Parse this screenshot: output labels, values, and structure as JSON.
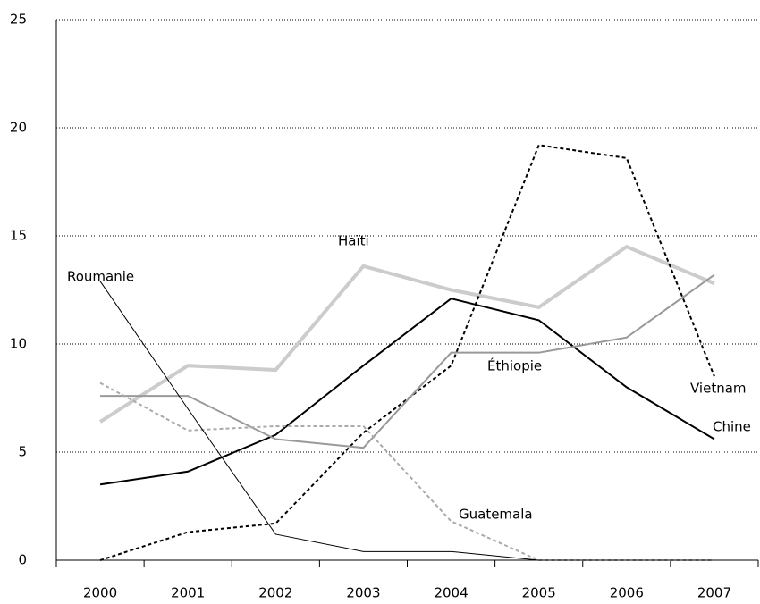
{
  "chart_data": {
    "type": "line",
    "categories": [
      "2000",
      "2001",
      "2002",
      "2003",
      "2004",
      "2005",
      "2006",
      "2007"
    ],
    "series": [
      {
        "name": "Haïti",
        "color": "#cccccc",
        "width": 4,
        "dash": false,
        "values": [
          6.4,
          9.0,
          8.8,
          13.6,
          12.5,
          11.7,
          14.5,
          12.8
        ]
      },
      {
        "name": "Vietnam",
        "color": "#000000",
        "width": 2,
        "dash": true,
        "values": [
          0,
          1.3,
          1.7,
          5.9,
          9.0,
          19.2,
          18.6,
          8.5
        ]
      },
      {
        "name": "Chine",
        "color": "#000000",
        "width": 2,
        "dash": false,
        "values": [
          3.5,
          4.1,
          5.8,
          9.0,
          12.1,
          11.1,
          8.0,
          5.6
        ]
      },
      {
        "name": "Éthiopie",
        "color": "#999999",
        "width": 2,
        "dash": false,
        "values": [
          7.6,
          7.6,
          5.6,
          5.2,
          9.6,
          9.6,
          10.3,
          13.2
        ]
      },
      {
        "name": "Guatemala",
        "color": "#aaaaaa",
        "width": 2,
        "dash": true,
        "values": [
          8.2,
          6.0,
          6.2,
          6.2,
          1.8,
          0,
          0,
          0
        ]
      },
      {
        "name": "Roumanie",
        "color": "#000000",
        "width": 1,
        "dash": false,
        "values": [
          12.9,
          7.0,
          1.2,
          0.4,
          0.4,
          0,
          0,
          0
        ]
      }
    ],
    "ylim": [
      0,
      25
    ],
    "yticks": [
      0,
      5,
      10,
      15,
      20,
      25
    ],
    "grid": true
  }
}
